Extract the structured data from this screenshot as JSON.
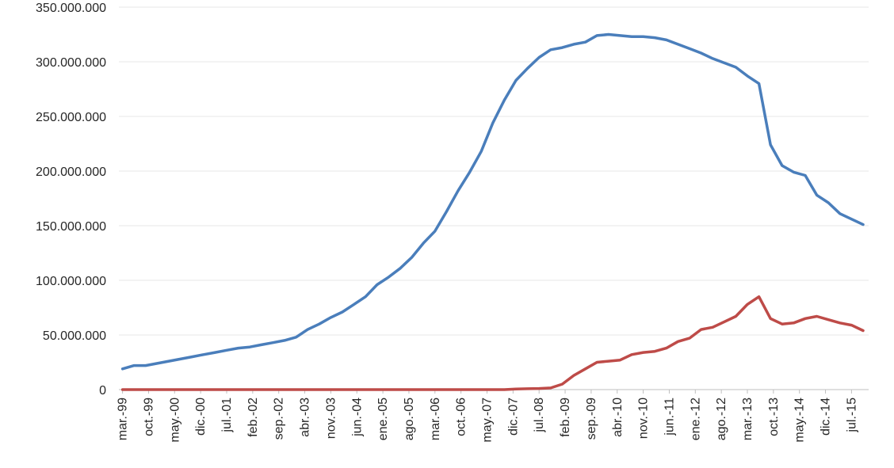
{
  "chart_data": {
    "type": "line",
    "title": "",
    "xlabel": "",
    "ylabel": "",
    "ylim": [
      0,
      350000000
    ],
    "yticks": [
      0,
      50000000,
      100000000,
      150000000,
      200000000,
      250000000,
      300000000,
      350000000
    ],
    "ytick_labels": [
      "0",
      "50.000.000",
      "100.000.000",
      "150.000.000",
      "200.000.000",
      "250.000.000",
      "300.000.000",
      "350.000.000"
    ],
    "xtick_labels": [
      "mar.-99",
      "oct.-99",
      "may.-00",
      "dic.-00",
      "jul.-01",
      "feb.-02",
      "sep.-02",
      "abr.-03",
      "nov.-03",
      "jun.-04",
      "ene.-05",
      "ago.-05",
      "mar.-06",
      "oct.-06",
      "may.-07",
      "dic.-07",
      "jul.-08",
      "feb.-09",
      "sep.-09",
      "abr.-10",
      "nov.-10",
      "jun.-11",
      "ene.-12",
      "ago.-12",
      "mar.-13",
      "oct.-13",
      "may.-14",
      "dic.-14",
      "jul.-15"
    ],
    "grid": true,
    "legend": "none",
    "series": [
      {
        "color": "#4a7ebb",
        "values": [
          19000000,
          22000000,
          22000000,
          24000000,
          26000000,
          28000000,
          30000000,
          32000000,
          34000000,
          36000000,
          38000000,
          39000000,
          41000000,
          43000000,
          45000000,
          48000000,
          55000000,
          60000000,
          66000000,
          71000000,
          78000000,
          85000000,
          96000000,
          103000000,
          111000000,
          121000000,
          134000000,
          145000000,
          163000000,
          182000000,
          199000000,
          218000000,
          244000000,
          265000000,
          283000000,
          294000000,
          304000000,
          311000000,
          313000000,
          316000000,
          318000000,
          324000000,
          325000000,
          324000000,
          323000000,
          323000000,
          322000000,
          320000000,
          316000000,
          312000000,
          308000000,
          303000000,
          299000000,
          295000000,
          287000000,
          280000000,
          224000000,
          205000000,
          199000000,
          196000000,
          178000000,
          171000000,
          161000000,
          156000000,
          151000000
        ]
      },
      {
        "color": "#be4b48",
        "values": [
          0,
          0,
          0,
          0,
          0,
          0,
          0,
          0,
          0,
          0,
          0,
          0,
          0,
          0,
          0,
          0,
          0,
          0,
          0,
          0,
          0,
          0,
          0,
          0,
          0,
          0,
          0,
          0,
          0,
          0,
          0,
          0,
          0,
          0,
          500000,
          800000,
          1000000,
          1500000,
          5000000,
          13000000,
          19000000,
          25000000,
          26000000,
          27000000,
          32000000,
          34000000,
          35000000,
          38000000,
          44000000,
          47000000,
          55000000,
          57000000,
          62000000,
          67000000,
          78000000,
          85000000,
          65000000,
          60000000,
          61000000,
          65000000,
          67000000,
          64000000,
          61000000,
          59000000,
          54000000
        ]
      }
    ]
  }
}
